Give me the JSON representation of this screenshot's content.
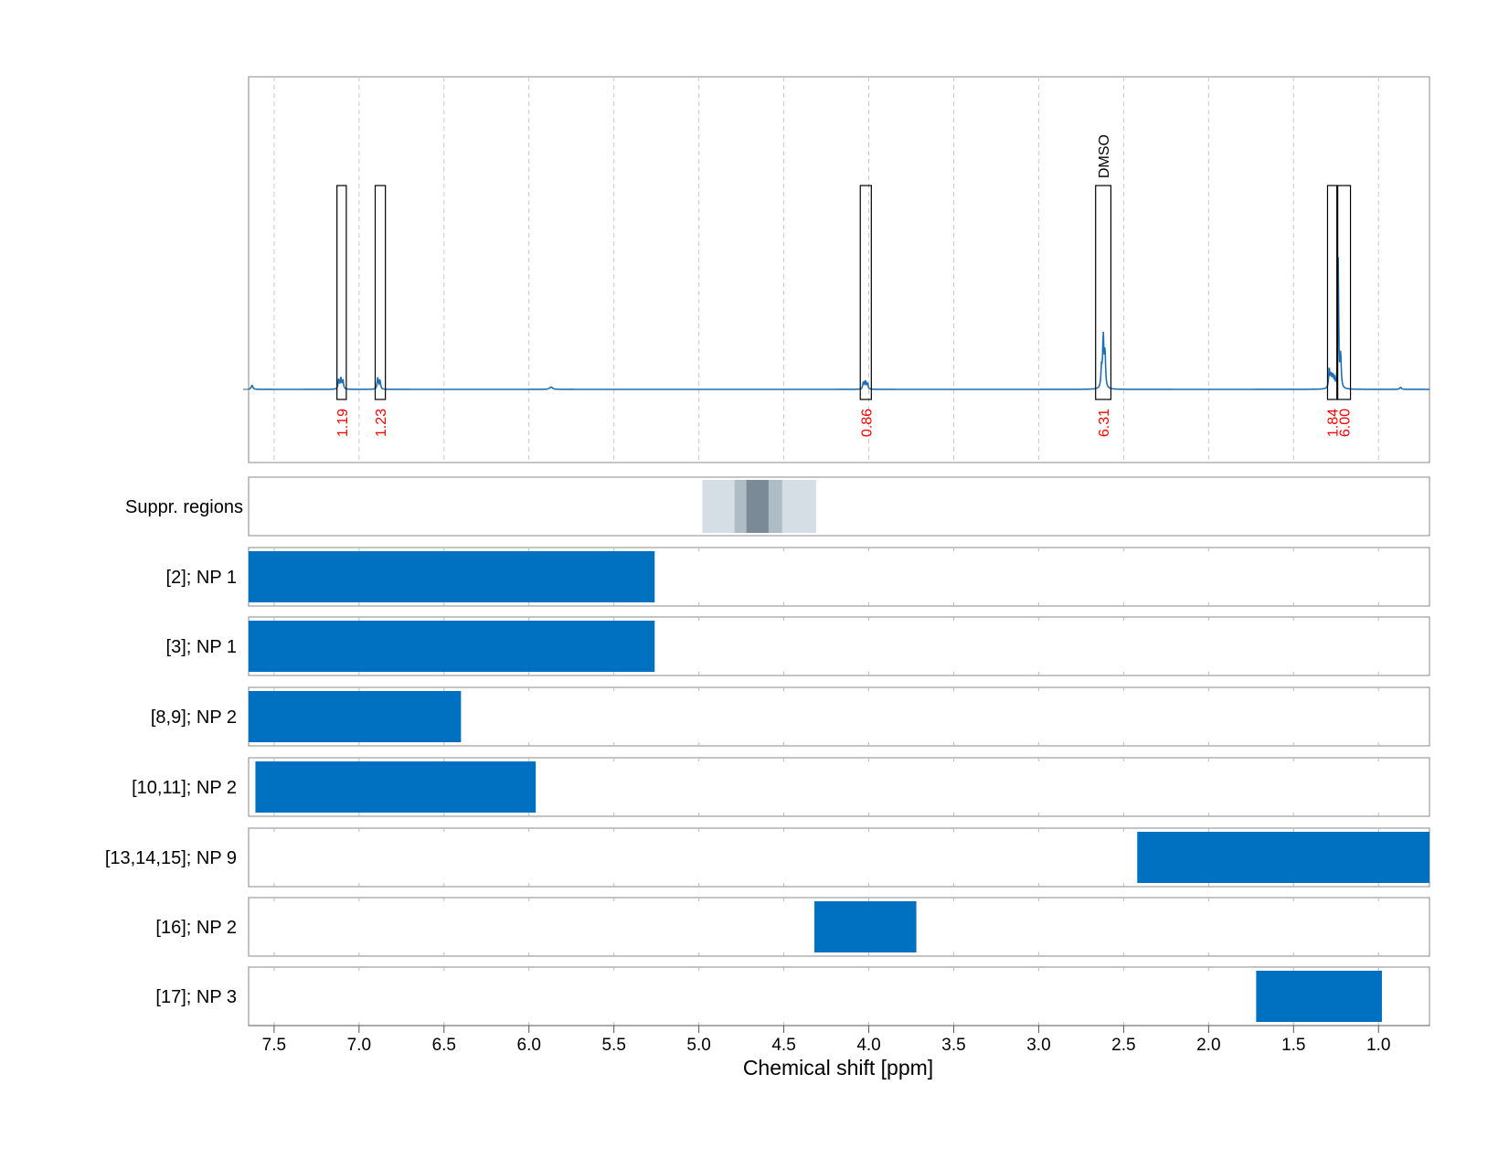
{
  "chart_data": {
    "type": "nmr-spectrum-with-range-panels",
    "xlabel": "Chemical shift [ppm]",
    "xlim": [
      7.65,
      0.7
    ],
    "x_ticks": [
      7.5,
      7.0,
      6.5,
      6.0,
      5.5,
      5.0,
      4.5,
      4.0,
      3.5,
      3.0,
      2.5,
      2.0,
      1.5,
      1.0
    ],
    "x_tick_labels": [
      "7.5",
      "7.0",
      "6.5",
      "6.0",
      "5.5",
      "5.0",
      "4.5",
      "4.0",
      "3.5",
      "3.0",
      "2.5",
      "2.0",
      "1.5",
      "1.0"
    ],
    "grid": "vertical dashed",
    "colors": {
      "spectrum": "#1f6fb5",
      "bar": "#0070c0",
      "integral_label": "#ff0000",
      "suppr_light": "#d5dee4",
      "suppr_mid": "#aebcc6",
      "suppr_dark": "#7a8a96",
      "axis": "#888888",
      "grid": "#c8c8c8"
    },
    "spectrum": {
      "baseline": 0.0,
      "ymax": 1.0,
      "peaks": [
        {
          "center": 7.63,
          "height": 0.02,
          "width": 0.006
        },
        {
          "center": 7.12,
          "height": 0.05,
          "width": 0.004
        },
        {
          "center": 7.107,
          "height": 0.055,
          "width": 0.004
        },
        {
          "center": 7.095,
          "height": 0.045,
          "width": 0.004
        },
        {
          "center": 6.89,
          "height": 0.06,
          "width": 0.004
        },
        {
          "center": 6.877,
          "height": 0.045,
          "width": 0.004
        },
        {
          "center": 5.87,
          "height": 0.012,
          "width": 0.01
        },
        {
          "center": 4.032,
          "height": 0.035,
          "width": 0.004
        },
        {
          "center": 4.02,
          "height": 0.04,
          "width": 0.004
        },
        {
          "center": 4.008,
          "height": 0.03,
          "width": 0.004
        },
        {
          "center": 2.62,
          "height": 0.26,
          "width": 0.004
        },
        {
          "center": 2.61,
          "height": 0.18,
          "width": 0.004
        },
        {
          "center": 2.63,
          "height": 0.1,
          "width": 0.004
        },
        {
          "center": 1.29,
          "height": 0.1,
          "width": 0.004
        },
        {
          "center": 1.28,
          "height": 0.06,
          "width": 0.004
        },
        {
          "center": 1.27,
          "height": 0.06,
          "width": 0.004
        },
        {
          "center": 1.26,
          "height": 0.05,
          "width": 0.004
        },
        {
          "center": 1.237,
          "height": 0.66,
          "width": 0.003
        },
        {
          "center": 1.223,
          "height": 0.17,
          "width": 0.004
        },
        {
          "center": 0.87,
          "height": 0.01,
          "width": 0.006
        }
      ]
    },
    "integrals": [
      {
        "from": 7.13,
        "to": 7.075,
        "value": "1.19"
      },
      {
        "from": 6.905,
        "to": 6.845,
        "value": "1.23"
      },
      {
        "from": 4.05,
        "to": 3.985,
        "value": "0.86"
      },
      {
        "from": 2.665,
        "to": 2.575,
        "value": "6.31",
        "annotation": "DMSO"
      },
      {
        "from": 1.3,
        "to": 1.245,
        "value": "1.84"
      },
      {
        "from": 1.24,
        "to": 1.165,
        "value": "6.00"
      }
    ],
    "suppression_region": {
      "label": "Suppr. regions",
      "bands": [
        {
          "from": 4.98,
          "to": 4.31,
          "level": "light"
        },
        {
          "from": 4.79,
          "to": 4.51,
          "level": "mid"
        },
        {
          "from": 4.72,
          "to": 4.59,
          "level": "dark"
        }
      ]
    },
    "panels": [
      {
        "label": "[2]; NP 1",
        "from": 7.65,
        "to": 5.26
      },
      {
        "label": "[3]; NP 1",
        "from": 7.65,
        "to": 5.26
      },
      {
        "label": "[8,9]; NP 2",
        "from": 7.65,
        "to": 6.4
      },
      {
        "label": "[10,11]; NP 2",
        "from": 7.61,
        "to": 5.96
      },
      {
        "label": "[13,14,15]; NP 9",
        "from": 2.42,
        "to": 0.7
      },
      {
        "label": "[16]; NP 2",
        "from": 4.32,
        "to": 3.72
      },
      {
        "label": "[17]; NP 3",
        "from": 1.72,
        "to": 0.98
      }
    ]
  }
}
